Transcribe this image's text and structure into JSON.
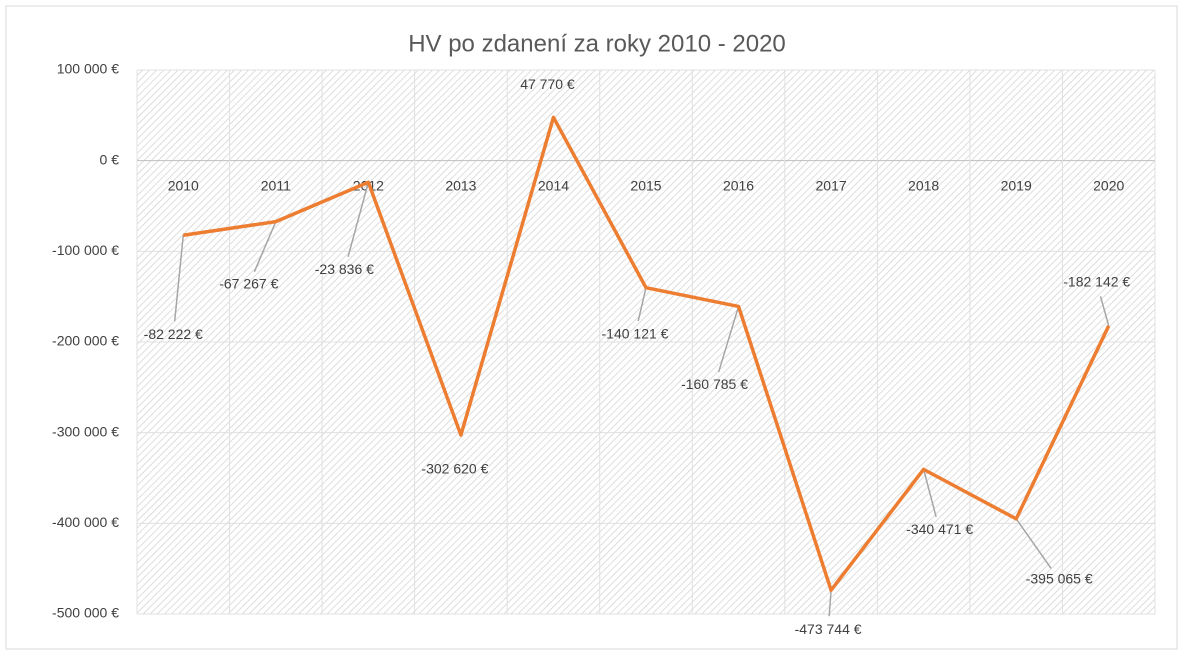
{
  "chart_data": {
    "type": "line",
    "title": "HV po zdanení za roky 2010 - 2020",
    "categories": [
      "2010",
      "2011",
      "2012",
      "2013",
      "2014",
      "2015",
      "2016",
      "2017",
      "2018",
      "2019",
      "2020"
    ],
    "series": [
      {
        "name": "HV po zdanení",
        "color": "#ed7d31",
        "values": [
          -82222,
          -67267,
          -23836,
          -302620,
          47770,
          -140121,
          -160785,
          -473744,
          -340471,
          -395065,
          -182142
        ],
        "value_labels": [
          "-82 222 €",
          "-67 267 €",
          "-23 836 €",
          "-302 620 €",
          "47 770 €",
          "-140 121 €",
          "-160 785 €",
          "-473 744 €",
          "-340 471 €",
          "-395 065 €",
          "-182 142 €"
        ]
      }
    ],
    "ylim": [
      -500000,
      100000
    ],
    "yticks": [
      {
        "value": -500000,
        "label": "-500 000 €"
      },
      {
        "value": -400000,
        "label": "-400 000 €"
      },
      {
        "value": -300000,
        "label": "-300 000 €"
      },
      {
        "value": -200000,
        "label": "-200 000 €"
      },
      {
        "value": -100000,
        "label": "-100 000 €"
      },
      {
        "value": 0,
        "label": "0 €"
      },
      {
        "value": 100000,
        "label": "100 000 €"
      }
    ],
    "grid": true
  }
}
